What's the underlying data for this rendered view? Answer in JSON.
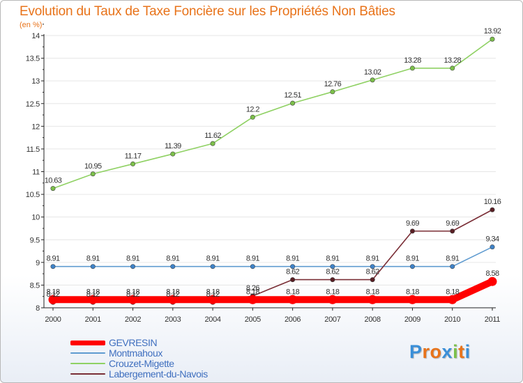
{
  "title": "Evolution du Taux de Taxe Foncière sur les Propriétés Non Bâties",
  "subtitle": "(en %)",
  "logo": {
    "letters": [
      "P",
      "r",
      "o",
      "x",
      "i",
      "t",
      "i"
    ],
    "colors": [
      "#3a8fd8",
      "#e8731a",
      "#e8731a",
      "#3a8fd8",
      "#7cc04a",
      "#e8731a",
      "#3a8fd8"
    ]
  },
  "chart_data": {
    "type": "line",
    "title": "Evolution du Taux de Taxe Foncière sur les Propriétés Non Bâties",
    "ylabel": "(en %)",
    "xlabel": "",
    "x": [
      "2000",
      "2001",
      "2002",
      "2003",
      "2004",
      "2005",
      "2006",
      "2007",
      "2008",
      "2009",
      "2010",
      "2011"
    ],
    "ylim": [
      8,
      14
    ],
    "yticks": [
      8,
      8.5,
      9,
      9.5,
      10,
      10.5,
      11,
      11.5,
      12,
      12.5,
      13,
      13.5,
      14
    ],
    "ytick_labels": [
      "8",
      "8.5",
      "9",
      "9.5",
      "10",
      "10.5",
      "11",
      "11.5",
      "12",
      "12.5",
      "13",
      "13.5",
      "14"
    ],
    "series": [
      {
        "name": "GEVRESIN",
        "color": "#ff0000",
        "values": [
          8.18,
          8.18,
          8.18,
          8.18,
          8.18,
          8.18,
          8.18,
          8.18,
          8.18,
          8.18,
          8.18,
          8.58
        ],
        "labels": [
          "8.18",
          "8.18",
          "8.18",
          "8.18",
          "8.18",
          "8.18",
          "8.18",
          "8.18",
          "8.18",
          "8.18",
          "8.18",
          "8.58"
        ]
      },
      {
        "name": "Montmahoux",
        "color": "#5f9bd0",
        "values": [
          8.91,
          8.91,
          8.91,
          8.91,
          8.91,
          8.91,
          8.91,
          8.91,
          8.91,
          8.91,
          8.91,
          9.34
        ],
        "labels": [
          "8.91",
          "8.91",
          "8.91",
          "8.91",
          "8.91",
          "8.91",
          "8.91",
          "8.91",
          "8.91",
          "8.91",
          "8.91",
          "9.34"
        ]
      },
      {
        "name": "Crouzet-Migette",
        "color": "#8fd163",
        "values": [
          10.63,
          10.95,
          11.17,
          11.39,
          11.62,
          12.2,
          12.51,
          12.76,
          13.02,
          13.28,
          13.28,
          13.92
        ],
        "labels": [
          "10.63",
          "10.95",
          "11.17",
          "11.39",
          "11.62",
          "12.2",
          "12.51",
          "12.76",
          "13.02",
          "13.28",
          "13.28",
          "13.92"
        ]
      },
      {
        "name": "Labergement-du-Navois",
        "color": "#7a2e36",
        "values": [
          8.12,
          8.12,
          8.12,
          8.12,
          8.12,
          8.26,
          8.62,
          8.62,
          8.62,
          9.69,
          9.69,
          10.16
        ],
        "labels": [
          "8.12",
          "8.12",
          "8.12",
          "8.12",
          "8.12",
          "8.26",
          "8.62",
          "8.62",
          "8.62",
          "9.69",
          "9.69",
          "10.16"
        ]
      }
    ],
    "legend_position": "bottom-left"
  }
}
